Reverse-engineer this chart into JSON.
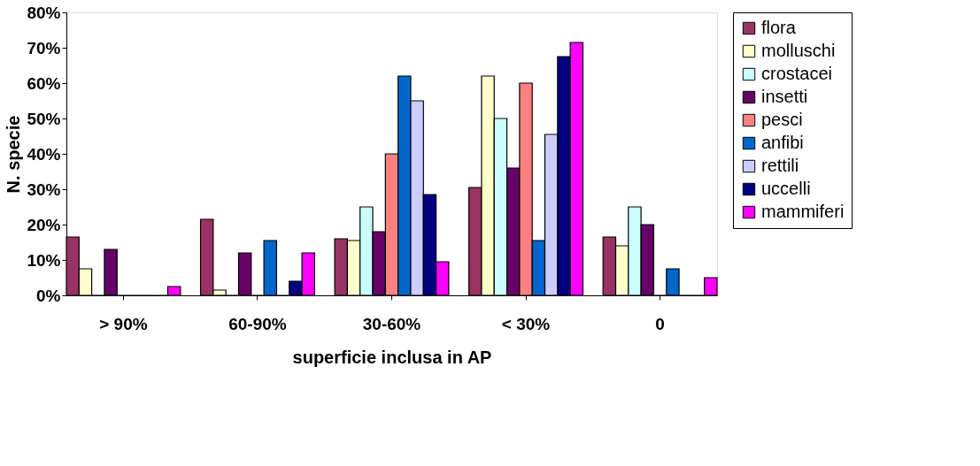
{
  "chart_data": {
    "type": "bar",
    "xlabel": "superficie inclusa in AP",
    "ylabel": "N. specie",
    "categories": [
      "> 90%",
      "60-90%",
      "30-60%",
      "< 30%",
      "0"
    ],
    "series": [
      {
        "name": "flora",
        "color": "#993366",
        "values": [
          16.5,
          21.5,
          16,
          30.5,
          16.5
        ]
      },
      {
        "name": "molluschi",
        "color": "#ffffcc",
        "values": [
          7.5,
          1.5,
          15.5,
          62,
          14
        ]
      },
      {
        "name": "crostacei",
        "color": "#ccffff",
        "values": [
          0,
          0,
          25,
          50,
          25
        ]
      },
      {
        "name": "insetti",
        "color": "#660066",
        "values": [
          13,
          12,
          18,
          36,
          20
        ]
      },
      {
        "name": "pesci",
        "color": "#ff8080",
        "values": [
          0,
          0,
          40,
          60,
          0
        ]
      },
      {
        "name": "anfibi",
        "color": "#0066cc",
        "values": [
          0,
          15.5,
          62,
          15.5,
          7.5
        ]
      },
      {
        "name": "rettili",
        "color": "#ccccff",
        "values": [
          0,
          0,
          55,
          45.5,
          0
        ]
      },
      {
        "name": "uccelli",
        "color": "#000080",
        "values": [
          0,
          4,
          28.5,
          67.5,
          0
        ]
      },
      {
        "name": "mammiferi",
        "color": "#ff00ff",
        "values": [
          2.5,
          12,
          9.5,
          71.5,
          5
        ]
      }
    ],
    "ylim": [
      0,
      80
    ],
    "yticks": [
      {
        "value": 0,
        "label": "0%"
      },
      {
        "value": 10,
        "label": "10%"
      },
      {
        "value": 20,
        "label": "20%"
      },
      {
        "value": 30,
        "label": "30%"
      },
      {
        "value": 40,
        "label": "40%"
      },
      {
        "value": 50,
        "label": "50%"
      },
      {
        "value": 60,
        "label": "60%"
      },
      {
        "value": 70,
        "label": "70%"
      },
      {
        "value": 80,
        "label": "80%"
      }
    ],
    "grid": false,
    "legend": "right"
  }
}
